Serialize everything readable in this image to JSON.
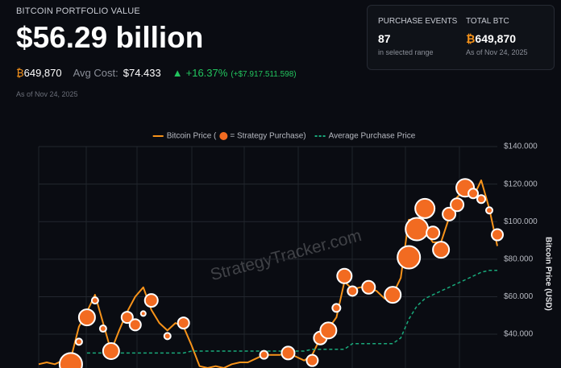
{
  "header": {
    "title": "BITCOIN PORTFOLIO VALUE",
    "value": "$56.29 billion",
    "btc_symbol": "₿",
    "btc_amount": "649,870",
    "avg_cost_label": "Avg Cost:",
    "avg_cost": "$74.433",
    "change_arrow": "▲",
    "change_percent": "+16.37%",
    "change_amount": "(+$7.917.511.598)",
    "as_of": "As of Nov 24, 2025"
  },
  "stats": [
    {
      "title": "PURCHASE EVENTS",
      "value": "87",
      "subtitle": "in selected range"
    },
    {
      "title": "TOTAL BTC",
      "symbol": "₿",
      "value": "649,870",
      "subtitle": "As of Nov 24, 2025"
    }
  ],
  "chart_data": {
    "type": "line",
    "watermark": "StrategyTracker.com",
    "y_label": "Bitcoin Price (USD)",
    "grid": true,
    "categories": [
      null,
      null,
      null,
      null,
      null,
      null,
      null,
      null,
      null,
      null,
      null,
      null,
      null,
      null,
      null,
      null,
      null,
      null,
      null,
      null,
      null,
      null,
      null,
      null,
      null,
      null,
      null,
      null,
      null,
      null,
      null,
      null,
      null,
      null,
      null,
      null,
      null,
      null,
      null,
      null,
      null,
      null,
      null,
      null,
      null,
      null,
      null,
      null,
      null,
      null,
      null,
      null,
      null,
      null,
      null,
      null,
      null,
      null
    ],
    "ylim": [
      22000,
      140000
    ],
    "yticks": [
      {
        "value": 40000,
        "label": "$40.000"
      },
      {
        "value": 60000,
        "label": "$60.000"
      },
      {
        "value": 80000,
        "label": "$80.000"
      },
      {
        "value": 100000,
        "label": "$100.000"
      },
      {
        "value": 120000,
        "label": "$120.000"
      },
      {
        "value": 140000,
        "label": "$140.000"
      }
    ],
    "series": [
      {
        "name": "Bitcoin Price (",
        "type": "line",
        "color": "#f7931a",
        "values": [
          24000,
          25000,
          24000,
          26000,
          27000,
          44000,
          52000,
          61000,
          46000,
          31000,
          42000,
          52000,
          60000,
          65000,
          53000,
          46000,
          42000,
          46000,
          44000,
          34000,
          23000,
          22000,
          23000,
          22000,
          24000,
          25000,
          25000,
          27000,
          29000,
          29000,
          29000,
          30000,
          28000,
          26000,
          29000,
          38000,
          43000,
          49000,
          68000,
          64000,
          65000,
          65000,
          63000,
          59000,
          61000,
          70000,
          101000,
          101000,
          95000,
          89000,
          89000,
          102000,
          113000,
          117000,
          113000,
          122000,
          107000,
          87000
        ]
      },
      {
        "name": "= Strategy Purchase)",
        "type": "bubble",
        "color": "#f26b21",
        "values": [
          null,
          null,
          null,
          null,
          24000,
          36000,
          49000,
          58000,
          43000,
          31000,
          null,
          49000,
          45000,
          51000,
          58000,
          null,
          39000,
          null,
          46000,
          null,
          null,
          null,
          null,
          null,
          null,
          null,
          null,
          null,
          29000,
          null,
          null,
          30000,
          null,
          null,
          26000,
          38000,
          42000,
          54000,
          71000,
          63000,
          null,
          65000,
          null,
          null,
          61000,
          null,
          81000,
          96000,
          107000,
          94000,
          85000,
          104000,
          109000,
          118000,
          115000,
          112000,
          106000,
          93000
        ],
        "sizes": [
          null,
          null,
          null,
          null,
          14,
          4,
          10,
          4,
          4,
          10,
          null,
          7,
          7,
          3,
          8,
          null,
          4,
          null,
          7,
          null,
          null,
          null,
          null,
          null,
          null,
          null,
          null,
          null,
          5,
          null,
          null,
          8,
          null,
          null,
          7,
          8,
          10,
          5,
          9,
          6,
          null,
          8,
          null,
          null,
          10,
          null,
          14,
          14,
          12,
          8,
          10,
          8,
          8,
          11,
          6,
          5,
          4,
          7
        ]
      },
      {
        "name": "Average Purchase Price",
        "type": "line",
        "dashed": true,
        "color": "#19a97b",
        "values": [
          null,
          null,
          null,
          null,
          null,
          null,
          30000,
          30000,
          30000,
          30000,
          30000,
          30000,
          30000,
          30000,
          30000,
          30000,
          30000,
          30000,
          30000,
          31000,
          31000,
          31000,
          31000,
          31000,
          31000,
          31000,
          31000,
          31000,
          31000,
          31000,
          31000,
          31000,
          31000,
          31000,
          32000,
          32000,
          32000,
          32000,
          32000,
          35000,
          35000,
          35000,
          35000,
          35000,
          35000,
          38000,
          48000,
          55000,
          59000,
          61000,
          63000,
          65000,
          67000,
          69000,
          71000,
          73000,
          74000,
          74000
        ]
      }
    ]
  }
}
